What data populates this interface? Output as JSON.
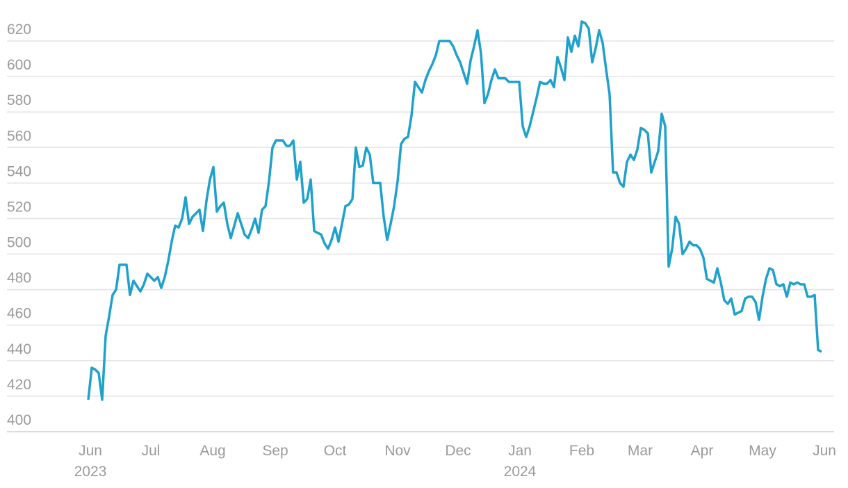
{
  "chart_data": {
    "type": "line",
    "color": "#1ea1cc",
    "grid": true,
    "values": [
      418,
      436,
      435,
      433,
      418,
      454,
      465,
      477,
      480,
      494,
      494,
      494,
      477,
      485,
      482,
      479,
      483,
      489,
      487,
      485,
      487,
      481,
      487,
      496,
      507,
      516,
      515,
      520,
      532,
      517,
      521,
      523,
      525,
      513,
      530,
      542,
      549,
      524,
      527,
      529,
      517,
      509,
      516,
      523,
      517,
      511,
      509,
      514,
      520,
      512,
      525,
      527,
      541,
      560,
      564,
      564,
      564,
      561,
      561,
      564,
      542,
      552,
      529,
      531,
      542,
      513,
      512,
      511,
      506,
      503,
      508,
      515,
      507,
      517,
      527,
      528,
      531,
      560,
      549,
      550,
      560,
      556,
      540,
      540,
      540,
      521,
      508,
      517,
      527,
      541,
      562,
      565,
      566,
      578,
      597,
      594,
      591,
      598,
      603,
      607,
      612,
      620,
      620,
      620,
      620,
      617,
      612,
      608,
      602,
      596,
      609,
      617,
      626,
      613,
      585,
      590,
      598,
      604,
      599,
      599,
      599,
      597,
      597,
      597,
      597,
      572,
      566,
      572,
      580,
      588,
      597,
      596,
      596,
      598,
      594,
      611,
      605,
      598,
      622,
      614,
      623,
      617,
      631,
      630,
      627,
      608,
      616,
      626,
      619,
      604,
      590,
      546,
      546,
      540,
      538,
      552,
      556,
      553,
      559,
      571,
      570,
      568,
      546,
      552,
      558,
      579,
      572,
      493,
      503,
      521,
      517,
      500,
      503,
      507,
      505,
      505,
      503,
      498,
      486,
      485,
      484,
      492,
      484,
      474,
      472,
      475,
      466,
      467,
      468,
      475,
      476,
      476,
      473,
      463,
      476,
      486,
      492,
      491,
      483,
      482,
      483,
      476,
      484,
      483,
      484,
      483,
      483,
      476,
      476,
      477,
      446,
      445
    ],
    "xlim": [
      -23.4,
      214.6
    ],
    "xticks": [
      {
        "value": 0.6,
        "label": "Jun 2023"
      },
      {
        "value": 18,
        "label": "Jul"
      },
      {
        "value": 35.8,
        "label": "Aug"
      },
      {
        "value": 53.8,
        "label": "Sep"
      },
      {
        "value": 71,
        "label": "Oct"
      },
      {
        "value": 89,
        "label": "Nov"
      },
      {
        "value": 106.4,
        "label": "Dec"
      },
      {
        "value": 124.2,
        "label": "Jan 2024"
      },
      {
        "value": 142,
        "label": "Feb"
      },
      {
        "value": 158.8,
        "label": "Mar"
      },
      {
        "value": 176.6,
        "label": "Apr"
      },
      {
        "value": 194,
        "label": "May"
      },
      {
        "value": 211.8,
        "label": "Jun"
      }
    ],
    "ylim": [
      400,
      620
    ],
    "yticks": [
      400,
      420,
      440,
      460,
      480,
      500,
      520,
      540,
      560,
      580,
      600,
      620
    ]
  }
}
